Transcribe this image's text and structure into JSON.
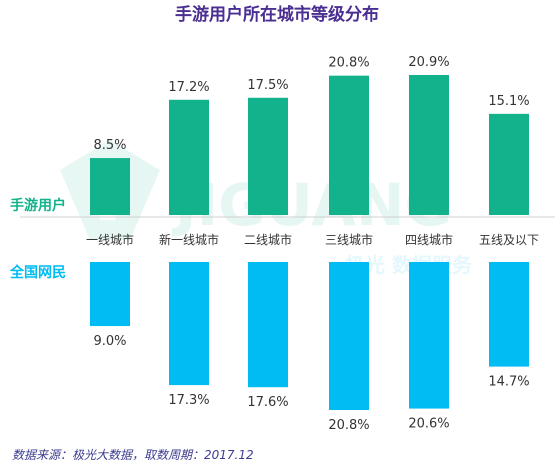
{
  "chart_data": {
    "type": "bar",
    "title": "手游用户所在城市等级分布",
    "categories": [
      "一线城市",
      "新一线城市",
      "二线城市",
      "三线城市",
      "四线城市",
      "五线及以下"
    ],
    "series": [
      {
        "name": "手游用户",
        "values": [
          8.5,
          17.2,
          17.5,
          20.8,
          20.9,
          15.1
        ],
        "labels": [
          "8.5%",
          "17.2%",
          "17.5%",
          "20.8%",
          "20.9%",
          "15.1%"
        ]
      },
      {
        "name": "全国网民",
        "values": [
          9.0,
          17.3,
          17.6,
          20.8,
          20.6,
          14.7
        ],
        "labels": [
          "9.0%",
          "17.3%",
          "17.6%",
          "20.8%",
          "20.6%",
          "14.7%"
        ]
      }
    ],
    "ylim": [
      0,
      21
    ],
    "grid": false,
    "legend": "left",
    "colors": {
      "top": "#12b28c",
      "bottom": "#00bcf2",
      "title": "#4b2e91"
    }
  },
  "footnote": "数据来源：极光大数据，取数周期：2017.12",
  "watermark": {
    "brand": "JIGUANG",
    "tagline": "极光 数据服务"
  }
}
